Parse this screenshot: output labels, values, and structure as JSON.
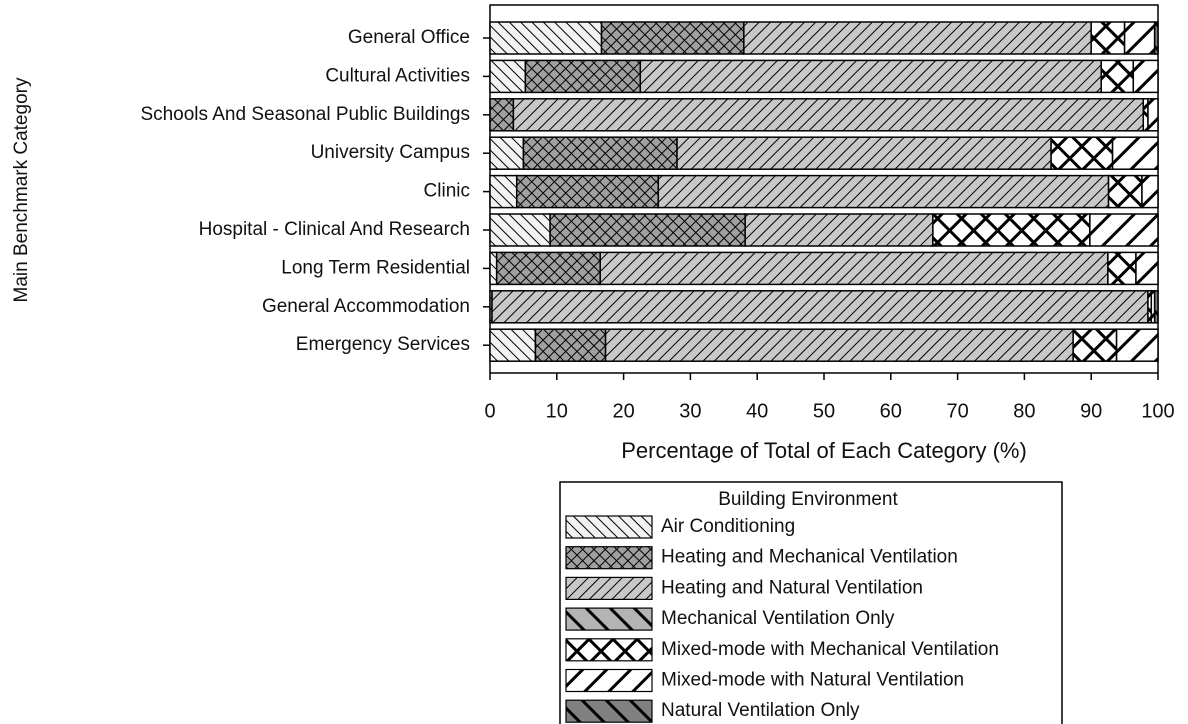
{
  "chart_data": {
    "type": "stacked_bar_horizontal",
    "x_label": "Percentage of Total of Each Category (%)",
    "y_label": "Main Benchmark Category",
    "legend_title": "Building Environment",
    "categories": [
      "General Office",
      "Cultural Activities",
      "Schools And Seasonal Public Buildings",
      "University Campus",
      "Clinic",
      "Hospital - Clinical And Research",
      "Long Term Residential",
      "General Accommodation",
      "Emergency Services"
    ],
    "series": [
      {
        "name": "Air Conditioning",
        "color": "#f2f2f2",
        "hatch": "back",
        "heavy": false,
        "values": [
          16.7,
          5.3,
          0,
          5,
          4,
          9,
          1,
          0.3,
          6.8
        ]
      },
      {
        "name": "Heating and Mechanical Ventilation",
        "color": "#a0a0a0",
        "hatch": "cross",
        "heavy": false,
        "values": [
          21.3,
          17.2,
          3.5,
          23,
          21.2,
          29.2,
          15.5,
          0,
          10.5
        ]
      },
      {
        "name": "Heating and Natural Ventilation",
        "color": "#c8c8c8",
        "hatch": "forward",
        "heavy": false,
        "values": [
          52,
          69,
          94.3,
          56,
          67.4,
          28.1,
          76,
          98.2,
          70
        ]
      },
      {
        "name": "Mechanical Ventilation Only",
        "color": "#b4b4b4",
        "hatch": "back",
        "heavy": true,
        "values": [
          0,
          0,
          0,
          0,
          0,
          0,
          0,
          0,
          0
        ]
      },
      {
        "name": "Mixed-mode with Mechanical Ventilation",
        "color": "#ffffff",
        "hatch": "cross",
        "heavy": true,
        "values": [
          5,
          4.8,
          0.7,
          9.2,
          5,
          23.5,
          4.2,
          0.5,
          6.5
        ]
      },
      {
        "name": "Mixed-mode with Natural Ventilation",
        "color": "#ffffff",
        "hatch": "forward",
        "heavy": true,
        "values": [
          4.5,
          3.7,
          1.5,
          6.8,
          2.4,
          10.2,
          3.3,
          0.5,
          6.2
        ]
      },
      {
        "name": "Natural Ventilation Only",
        "color": "#808080",
        "hatch": "back",
        "heavy": true,
        "values": [
          0.5,
          0,
          0,
          0,
          0,
          0,
          0,
          0.5,
          0
        ]
      }
    ],
    "xlim": [
      0,
      100
    ],
    "xticks": [
      0,
      10,
      20,
      30,
      40,
      50,
      60,
      70,
      80,
      90,
      100
    ]
  }
}
